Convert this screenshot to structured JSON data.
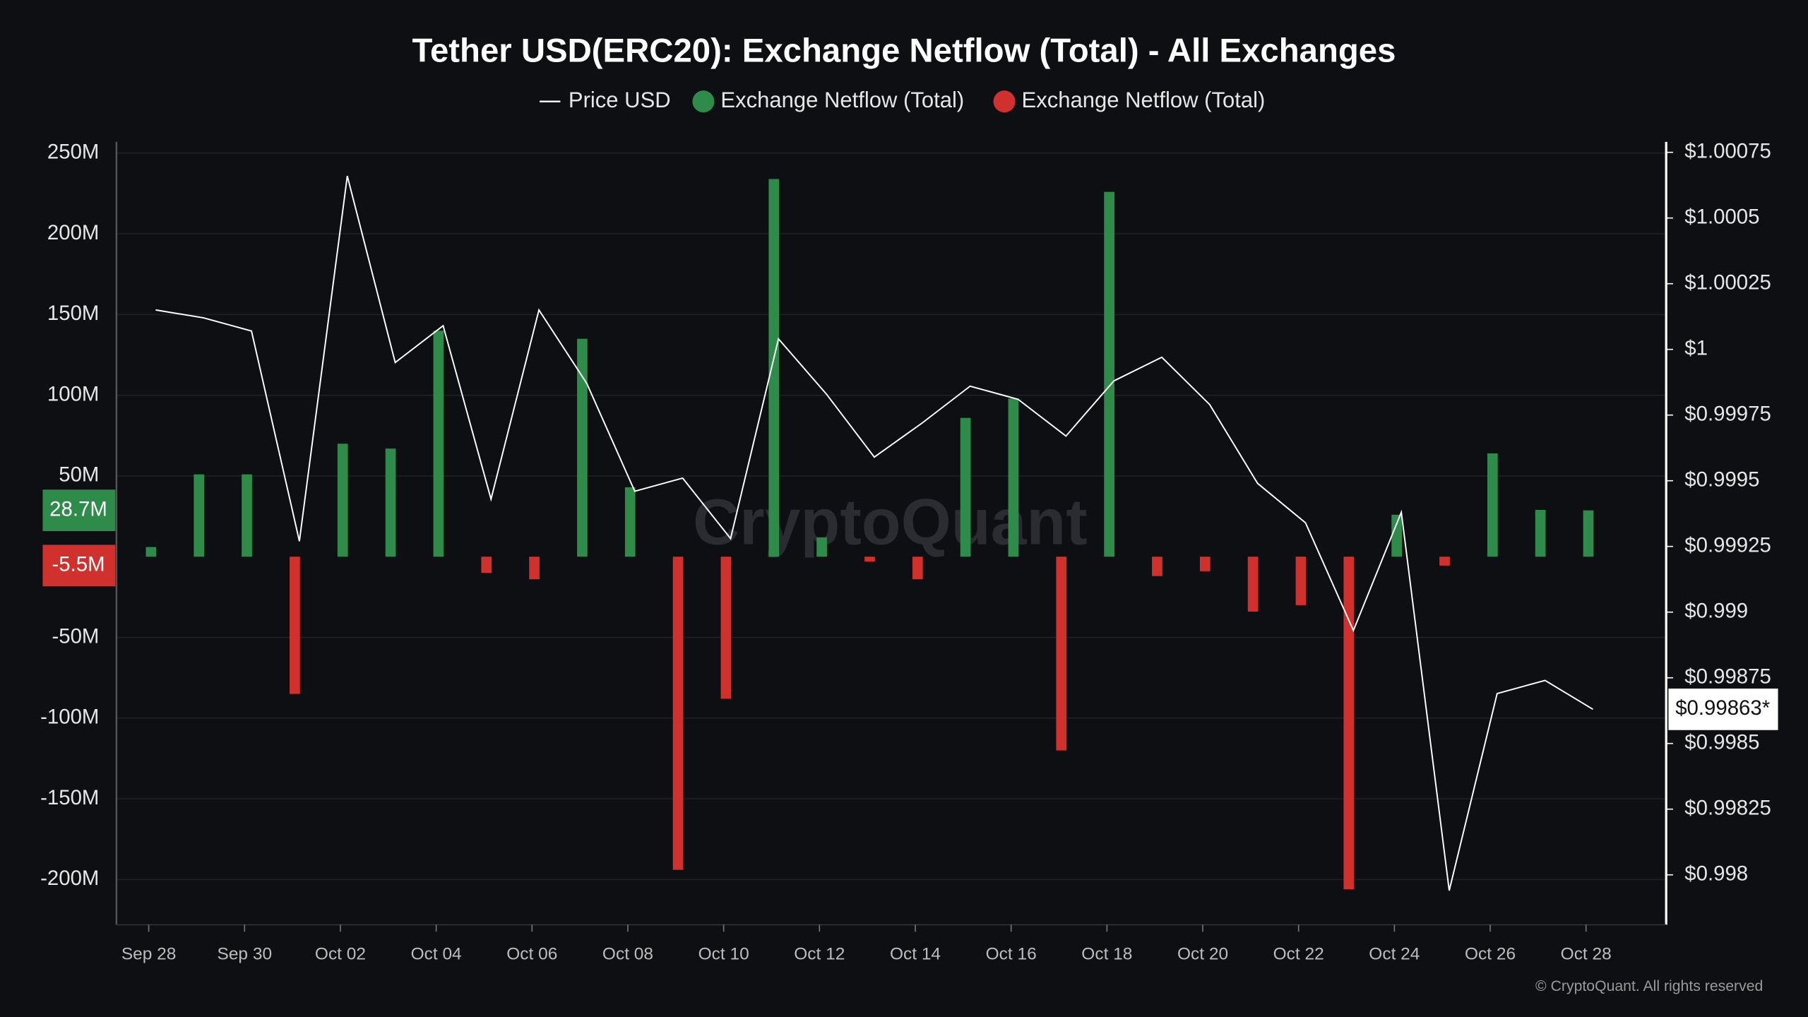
{
  "chart_data": {
    "type": "bar",
    "title": "Tether USD(ERC20): Exchange Netflow (Total) - All Exchanges",
    "watermark": "CryptoQuant",
    "credit": "© CryptoQuant. All rights reserved",
    "categories": [
      "Sep 28",
      null,
      "Sep 30",
      null,
      "Oct 02",
      null,
      "Oct 04",
      null,
      "Oct 06",
      null,
      "Oct 08",
      null,
      "Oct 10",
      null,
      "Oct 12",
      null,
      "Oct 14",
      null,
      "Oct 16",
      null,
      "Oct 18",
      null,
      "Oct 20",
      null,
      "Oct 22",
      null,
      "Oct 24",
      null,
      "Oct 26",
      null,
      "Oct 28"
    ],
    "series": [
      {
        "name": "Price USD",
        "type": "line",
        "axis": "y2",
        "color": "#ffffff",
        "values": [
          1.00015,
          1.00012,
          1.00007,
          0.99927,
          1.00066,
          0.99995,
          1.00009,
          0.99943,
          1.00015,
          0.99987,
          0.99946,
          0.99951,
          0.99928,
          1.00004,
          0.99983,
          0.99959,
          0.99972,
          0.99986,
          0.99981,
          0.99967,
          0.99988,
          0.99997,
          0.99979,
          0.99949,
          0.99934,
          0.99893,
          0.99938,
          0.99794,
          0.99869,
          0.99874,
          0.99863
        ]
      },
      {
        "name": "Exchange Netflow (Total)",
        "type": "bar",
        "color": "#2e8b4a",
        "values": [
          6,
          51,
          51,
          null,
          70,
          67,
          140,
          null,
          null,
          135,
          43,
          null,
          null,
          234,
          12,
          null,
          null,
          86,
          98,
          null,
          226,
          null,
          null,
          null,
          null,
          null,
          26,
          null,
          64,
          29,
          28.7
        ]
      },
      {
        "name": "Exchange Netflow (Total)",
        "type": "bar",
        "color": "#d0312d",
        "values": [
          null,
          null,
          null,
          -85,
          null,
          null,
          null,
          -10,
          -14,
          null,
          null,
          -194,
          -88,
          null,
          null,
          -3,
          -14,
          null,
          null,
          -120,
          null,
          -12,
          -9,
          -34,
          -30,
          -206,
          null,
          -5.5,
          null,
          null,
          null
        ]
      }
    ],
    "ylim": [
      -228,
      257
    ],
    "yticks": [
      {
        "value": 250,
        "label": "250M"
      },
      {
        "value": 200,
        "label": "200M"
      },
      {
        "value": 150,
        "label": "150M"
      },
      {
        "value": 100,
        "label": "100M"
      },
      {
        "value": 50,
        "label": "50M"
      },
      {
        "value": -50,
        "label": "-50M"
      },
      {
        "value": -100,
        "label": "-100M"
      },
      {
        "value": -150,
        "label": "-150M"
      },
      {
        "value": -200,
        "label": "-200M"
      }
    ],
    "y2lim": [
      0.99781,
      1.00079
    ],
    "y2ticks": [
      {
        "value": 1.00075,
        "label": "$1.00075"
      },
      {
        "value": 1.0005,
        "label": "$1.0005"
      },
      {
        "value": 1.00025,
        "label": "$1.00025"
      },
      {
        "value": 1,
        "label": "$1"
      },
      {
        "value": 0.99975,
        "label": "$0.99975"
      },
      {
        "value": 0.9995,
        "label": "$0.9995"
      },
      {
        "value": 0.99925,
        "label": "$0.99925"
      },
      {
        "value": 0.999,
        "label": "$0.999"
      },
      {
        "value": 0.99875,
        "label": "$0.99875"
      },
      {
        "value": 0.9985,
        "label": "$0.9985"
      },
      {
        "value": 0.99825,
        "label": "$0.99825"
      },
      {
        "value": 0.998,
        "label": "$0.998"
      }
    ],
    "annotations": [
      {
        "axis": "y",
        "value": 28.7,
        "label": "28.7M",
        "color": "#2e8b4a"
      },
      {
        "axis": "y",
        "value": -5.5,
        "label": "-5.5M",
        "color": "#d0312d"
      },
      {
        "axis": "y2",
        "value": 0.99863,
        "label": "$0.99863*",
        "color": "#ffffff"
      }
    ],
    "grid": true,
    "legend": "top"
  }
}
